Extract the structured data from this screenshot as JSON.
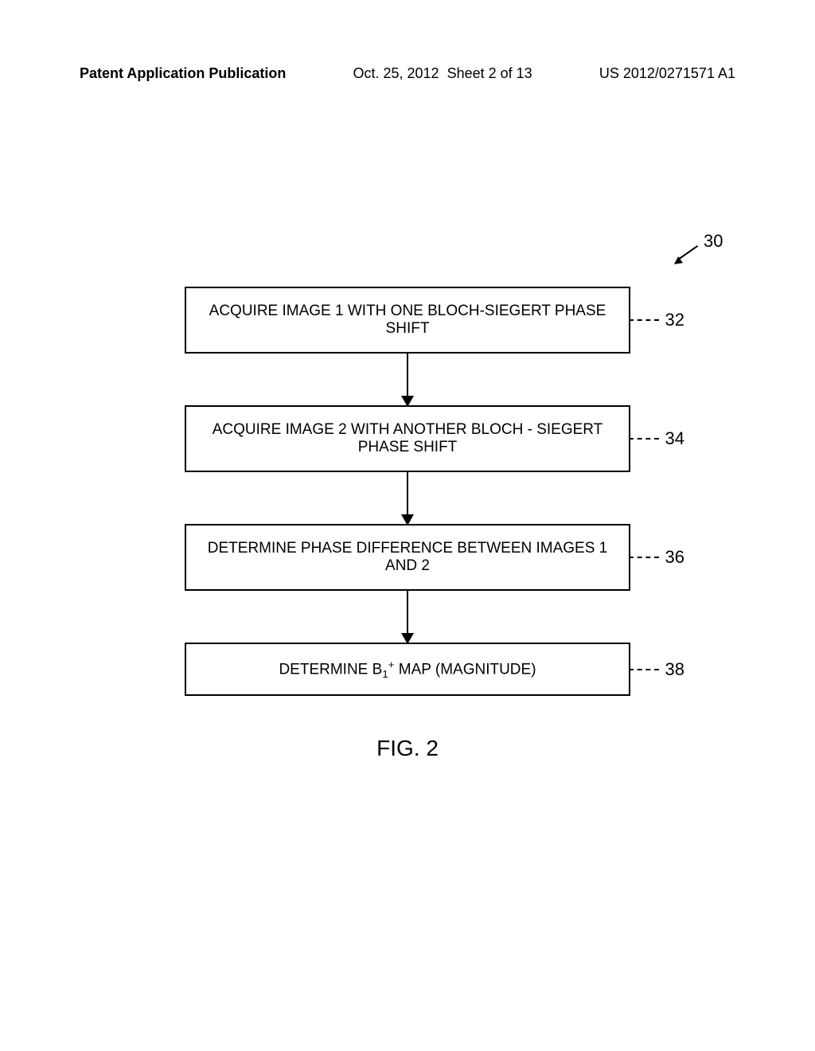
{
  "header": {
    "left": "Patent Application Publication",
    "date": "Oct. 25, 2012",
    "sheet": "Sheet 2 of 13",
    "pubNumber": "US 2012/0271571 A1"
  },
  "diagram": {
    "type": "flowchart",
    "refNumber": "30",
    "boxes": [
      {
        "text": "ACQUIRE IMAGE 1 WITH ONE BLOCH-SIEGERT PHASE SHIFT",
        "label": "32"
      },
      {
        "text": "ACQUIRE IMAGE 2 WITH ANOTHER BLOCH - SIEGERT PHASE SHIFT",
        "label": "34"
      },
      {
        "text": "DETERMINE PHASE DIFFERENCE BETWEEN IMAGES 1 AND 2",
        "label": "36"
      },
      {
        "textPrefix": "DETERMINE B",
        "textSub": "1",
        "textSup": "+",
        "textSuffix": " MAP (MAGNITUDE)",
        "label": "38"
      }
    ],
    "caption": "FIG. 2"
  },
  "styling": {
    "pageWidth": 1024,
    "pageHeight": 1320,
    "backgroundColor": "#ffffff",
    "borderColor": "#000000",
    "textColor": "#000000",
    "boxFontSize": 19,
    "labelFontSize": 22,
    "captionFontSize": 28,
    "headerFontSize": 18,
    "boxWidth": 560,
    "boxBorderWidth": 2,
    "arrowHeight": 65
  }
}
